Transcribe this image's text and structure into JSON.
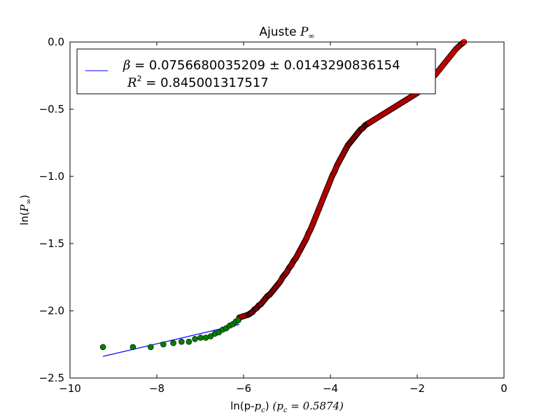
{
  "chart_data": {
    "type": "scatter",
    "title": "Ajuste ",
    "title_math": "P",
    "title_math_sub": "∞",
    "xlabel": "ln(p-",
    "xlabel_math_pc": "p",
    "xlabel_math_pc_sub": "c",
    "xlabel_tail": ")  ",
    "xlabel_math_note": "(p",
    "xlabel_math_note_sub": "c",
    "xlabel_math_note_tail": " = 0.5874)",
    "ylabel": "ln(",
    "ylabel_math": "P",
    "ylabel_math_sub": "∞",
    "ylabel_tail": ")",
    "xlim": [
      -10,
      0
    ],
    "ylim": [
      -2.5,
      0.0
    ],
    "xticks": [
      -10,
      -8,
      -6,
      -4,
      -2,
      0
    ],
    "xtick_labels": [
      "−10",
      "−8",
      "−6",
      "−4",
      "−2",
      "0"
    ],
    "yticks": [
      -2.5,
      -2.0,
      -1.5,
      -1.0,
      -0.5,
      0.0
    ],
    "ytick_labels": [
      "−2.5",
      "−2.0",
      "−1.5",
      "−1.0",
      "−0.5",
      "0.0"
    ],
    "grid": false,
    "legend": {
      "placement": "top-left",
      "entry1_math": "β",
      "entry1_text": " = 0.0756680035209 ± 0.0143290836154",
      "entry2_math": "R",
      "entry2_sup": "2",
      "entry2_text": " = 0.845001317517"
    },
    "colors": {
      "fit_line": "#0000ff",
      "fit_points": "#008000",
      "other_points": "#ff0000",
      "marker_edge": "#000000"
    },
    "series": [
      {
        "kind": "scatter-red",
        "points": [
          [
            -6.1,
            -2.05
          ],
          [
            -6.0,
            -2.04
          ],
          [
            -5.9,
            -2.03
          ],
          [
            -5.85,
            -2.02
          ],
          [
            -5.8,
            -2.01
          ],
          [
            -5.75,
            -1.99
          ],
          [
            -5.7,
            -1.98
          ],
          [
            -5.65,
            -1.96
          ],
          [
            -5.6,
            -1.95
          ],
          [
            -5.55,
            -1.93
          ],
          [
            -5.5,
            -1.91
          ],
          [
            -5.45,
            -1.89
          ],
          [
            -5.4,
            -1.88
          ],
          [
            -5.35,
            -1.86
          ],
          [
            -5.3,
            -1.84
          ],
          [
            -5.25,
            -1.82
          ],
          [
            -5.2,
            -1.8
          ],
          [
            -5.15,
            -1.78
          ],
          [
            -5.1,
            -1.75
          ],
          [
            -5.05,
            -1.73
          ],
          [
            -5.0,
            -1.71
          ],
          [
            -4.95,
            -1.68
          ],
          [
            -4.9,
            -1.66
          ],
          [
            -4.85,
            -1.63
          ],
          [
            -4.8,
            -1.61
          ],
          [
            -4.75,
            -1.58
          ],
          [
            -4.7,
            -1.55
          ],
          [
            -4.65,
            -1.52
          ],
          [
            -4.6,
            -1.49
          ],
          [
            -4.55,
            -1.46
          ],
          [
            -4.5,
            -1.42
          ],
          [
            -4.45,
            -1.39
          ],
          [
            -4.4,
            -1.35
          ],
          [
            -4.35,
            -1.31
          ],
          [
            -4.3,
            -1.27
          ],
          [
            -4.25,
            -1.23
          ],
          [
            -4.2,
            -1.19
          ],
          [
            -4.15,
            -1.15
          ],
          [
            -4.1,
            -1.11
          ],
          [
            -4.05,
            -1.07
          ],
          [
            -4.0,
            -1.03
          ],
          [
            -3.95,
            -0.99
          ],
          [
            -3.9,
            -0.96
          ],
          [
            -3.85,
            -0.92
          ],
          [
            -3.8,
            -0.89
          ],
          [
            -3.75,
            -0.86
          ],
          [
            -3.7,
            -0.83
          ],
          [
            -3.65,
            -0.8
          ],
          [
            -3.6,
            -0.77
          ],
          [
            -3.55,
            -0.75
          ],
          [
            -3.5,
            -0.73
          ],
          [
            -3.45,
            -0.71
          ],
          [
            -3.4,
            -0.69
          ],
          [
            -3.35,
            -0.67
          ],
          [
            -3.3,
            -0.65
          ],
          [
            -3.25,
            -0.64
          ],
          [
            -3.2,
            -0.62
          ],
          [
            -3.15,
            -0.61
          ],
          [
            -3.1,
            -0.6
          ],
          [
            -3.0,
            -0.58
          ],
          [
            -2.9,
            -0.56
          ],
          [
            -2.8,
            -0.54
          ],
          [
            -2.7,
            -0.52
          ],
          [
            -2.6,
            -0.5
          ],
          [
            -2.5,
            -0.48
          ],
          [
            -2.4,
            -0.46
          ],
          [
            -2.3,
            -0.44
          ],
          [
            -2.2,
            -0.42
          ],
          [
            -2.1,
            -0.4
          ],
          [
            -2.0,
            -0.38
          ],
          [
            -1.9,
            -0.35
          ],
          [
            -1.8,
            -0.32
          ],
          [
            -1.7,
            -0.28
          ],
          [
            -1.6,
            -0.25
          ],
          [
            -1.5,
            -0.21
          ],
          [
            -1.4,
            -0.17
          ],
          [
            -1.3,
            -0.13
          ],
          [
            -1.2,
            -0.09
          ],
          [
            -1.1,
            -0.05
          ],
          [
            -1.0,
            -0.02
          ],
          [
            -0.92,
            0.0
          ]
        ]
      },
      {
        "kind": "scatter-green",
        "points": [
          [
            -9.24,
            -2.27
          ],
          [
            -8.55,
            -2.27
          ],
          [
            -8.14,
            -2.27
          ],
          [
            -7.85,
            -2.25
          ],
          [
            -7.62,
            -2.24
          ],
          [
            -7.43,
            -2.23
          ],
          [
            -7.26,
            -2.23
          ],
          [
            -7.12,
            -2.21
          ],
          [
            -6.99,
            -2.2
          ],
          [
            -6.87,
            -2.2
          ],
          [
            -6.76,
            -2.19
          ],
          [
            -6.66,
            -2.17
          ],
          [
            -6.57,
            -2.16
          ],
          [
            -6.48,
            -2.14
          ],
          [
            -6.4,
            -2.13
          ],
          [
            -6.32,
            -2.11
          ],
          [
            -6.25,
            -2.1
          ],
          [
            -6.18,
            -2.08
          ],
          [
            -6.12,
            -2.07
          ]
        ]
      },
      {
        "kind": "fit-line",
        "slope": 0.0756680035209,
        "intercept": -1.64,
        "x_range": [
          -9.24,
          -6.1
        ]
      }
    ]
  }
}
